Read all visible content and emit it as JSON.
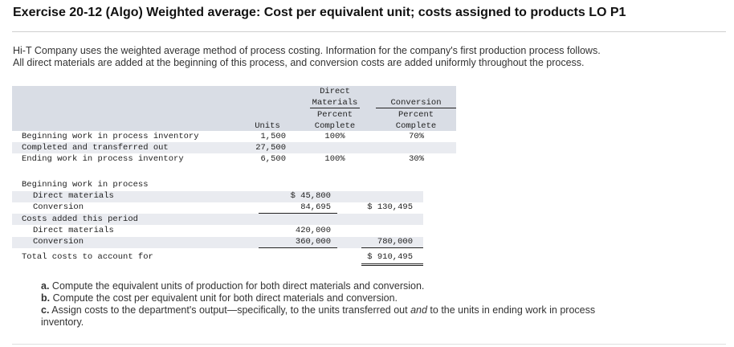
{
  "title": "Exercise 20-12 (Algo) Weighted average: Cost per equivalent unit; costs assigned to products LO P1",
  "intro": {
    "line1": "Hi-T Company uses the weighted average method of process costing. Information for the company's first production process follows.",
    "line2": "All direct materials are added at the beginning of this process, and conversion costs are added uniformly throughout the process."
  },
  "units_table": {
    "headers": {
      "units": "Units",
      "dm_1": "Direct",
      "dm_2": "Materials",
      "dm_3": "Percent",
      "dm_4": "Complete",
      "cv_1": "Conversion",
      "cv_2": "Percent",
      "cv_3": "Complete"
    },
    "rows": [
      {
        "label": "Beginning work in process inventory",
        "units": "1,500",
        "dm": "100%",
        "cv": "70%"
      },
      {
        "label": "Completed and transferred out",
        "units": "27,500",
        "dm": "",
        "cv": ""
      },
      {
        "label": "Ending work in process inventory",
        "units": "6,500",
        "dm": "100%",
        "cv": "30%"
      }
    ]
  },
  "cost_table": {
    "bwip_label": "Beginning work in process",
    "bwip_dm_label": "Direct materials",
    "bwip_dm_value": "$ 45,800",
    "bwip_cv_label": "Conversion",
    "bwip_cv_value": "84,695",
    "bwip_total": "$ 130,495",
    "added_label": "Costs added this period",
    "added_dm_label": "Direct materials",
    "added_dm_value": "420,000",
    "added_cv_label": "Conversion",
    "added_cv_value": "360,000",
    "added_total": "780,000",
    "total_label": "Total costs to account for",
    "total_value": "$ 910,495"
  },
  "questions": {
    "a_label": "a.",
    "a_text": "Compute the equivalent units of production for both direct materials and conversion.",
    "b_label": "b.",
    "b_text": "Compute the cost per equivalent unit for both direct materials and conversion.",
    "c_label": "c.",
    "c_text_1": "Assign costs to the department's output—specifically, to the units transferred out",
    "c_text_em": "and",
    "c_text_2": "to the units in ending work in process",
    "c_text_3": "inventory."
  },
  "colors": {
    "header_shade": "#d9dde5",
    "row_shade": "#e9ebf0"
  }
}
